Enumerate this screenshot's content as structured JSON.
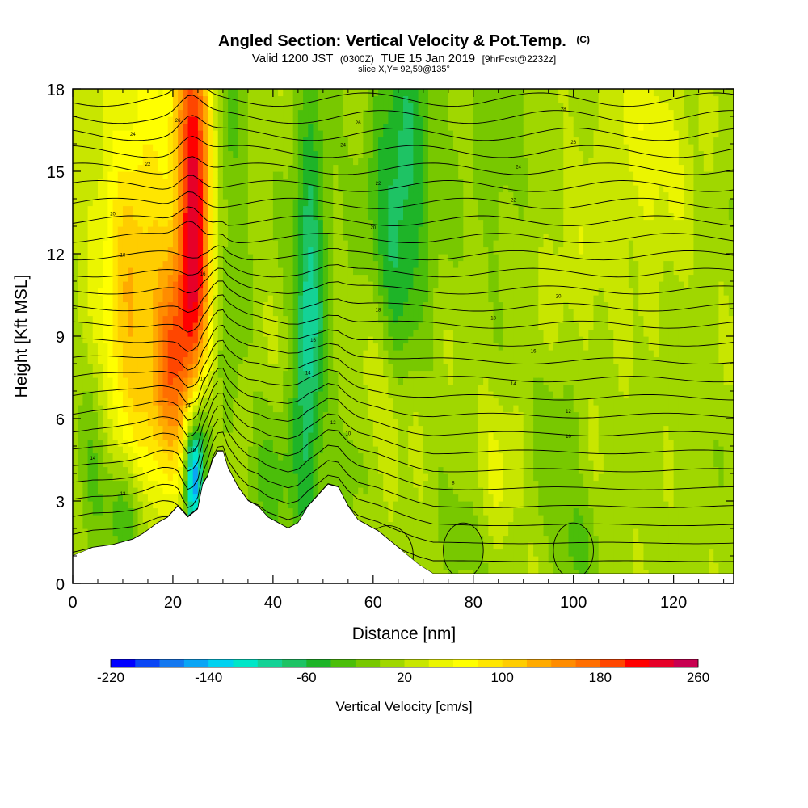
{
  "title": {
    "main": "Angled Section: Vertical Velocity & Pot.Temp.",
    "main_suffix": "(C)",
    "line2_a": "Valid 1200 JST",
    "line2_b": "(0300Z)",
    "line2_c": "TUE 15 Jan 2019",
    "line2_d": "[9hrFcst@2232z]",
    "line3": "slice X,Y= 92,59@135°"
  },
  "chart_data": {
    "type": "heatmap",
    "title": "Angled Section: Vertical Velocity & Pot.Temp.",
    "xlabel": "Distance [nm]",
    "ylabel": "Height [Kft MSL]",
    "xlim": [
      0,
      132
    ],
    "ylim": [
      0,
      18
    ],
    "x_ticks": [
      0,
      20,
      40,
      60,
      80,
      100,
      120
    ],
    "y_ticks": [
      0,
      3,
      6,
      9,
      12,
      15,
      18
    ],
    "grid": false,
    "colorbar": {
      "title": "Vertical Velocity [cm/s]",
      "min": -220,
      "max": 260,
      "step": 20,
      "tick_labels": [
        -220,
        -140,
        -60,
        20,
        100,
        180,
        260
      ],
      "colors": [
        "#0000ff",
        "#0a46f5",
        "#1478f0",
        "#0aa5f5",
        "#00d2f0",
        "#00e6c8",
        "#14d296",
        "#1ec364",
        "#1eb428",
        "#4bbe0a",
        "#78c800",
        "#a0d700",
        "#c8e600",
        "#ebf500",
        "#ffff00",
        "#ffe600",
        "#ffcd00",
        "#ffaa00",
        "#ff8c00",
        "#ff6e00",
        "#ff4600",
        "#ff0000",
        "#e60028",
        "#c80050",
        "#a00078",
        "#82009b",
        "#6e00aa",
        "#5a00b4"
      ]
    },
    "terrain": [
      [
        0,
        1.0
      ],
      [
        4,
        1.3
      ],
      [
        8,
        1.4
      ],
      [
        12,
        1.6
      ],
      [
        14,
        1.8
      ],
      [
        17,
        2.2
      ],
      [
        19,
        2.4
      ],
      [
        21,
        2.8
      ],
      [
        23,
        2.4
      ],
      [
        25,
        2.7
      ],
      [
        26,
        3.6
      ],
      [
        27,
        3.9
      ],
      [
        28,
        4.5
      ],
      [
        29,
        4.8
      ],
      [
        30,
        4.8
      ],
      [
        31,
        4.2
      ],
      [
        33,
        3.5
      ],
      [
        35,
        3.0
      ],
      [
        37,
        2.8
      ],
      [
        39,
        2.4
      ],
      [
        41,
        2.2
      ],
      [
        43,
        2.0
      ],
      [
        45,
        2.2
      ],
      [
        47,
        2.8
      ],
      [
        49,
        3.2
      ],
      [
        51,
        3.6
      ],
      [
        53,
        3.5
      ],
      [
        55,
        2.8
      ],
      [
        57,
        2.3
      ],
      [
        59,
        2.1
      ],
      [
        61,
        1.9
      ],
      [
        63,
        1.6
      ],
      [
        65,
        1.3
      ],
      [
        67,
        1.0
      ],
      [
        69,
        0.7
      ],
      [
        72,
        0.35
      ],
      [
        132,
        0.35
      ]
    ],
    "velocity_features": [
      {
        "x": 24.5,
        "z": 15.5,
        "sx": 2.6,
        "sz": 4.5,
        "v": 180
      },
      {
        "x": 24.5,
        "z": 10.0,
        "sx": 3.0,
        "sz": 3.5,
        "v": 95
      },
      {
        "x": 19.0,
        "z": 7.5,
        "sx": 3.0,
        "sz": 3.0,
        "v": 120
      },
      {
        "x": 11.0,
        "z": 8.5,
        "sx": 3.0,
        "sz": 3.5,
        "v": 70
      },
      {
        "x": 15.0,
        "z": 15.0,
        "sx": 5.0,
        "sz": 6.0,
        "v": 60
      },
      {
        "x": 6.0,
        "z": 12.5,
        "sx": 4.0,
        "sz": 3.0,
        "v": 35
      },
      {
        "x": 24.0,
        "z": 3.8,
        "sx": 1.2,
        "sz": 1.5,
        "v": -165
      },
      {
        "x": 26.0,
        "z": 5.5,
        "sx": 1.5,
        "sz": 2.0,
        "v": -75
      },
      {
        "x": 30.0,
        "z": 14.0,
        "sx": 3.0,
        "sz": 6.0,
        "v": -45
      },
      {
        "x": 47.0,
        "z": 8.0,
        "sx": 2.0,
        "sz": 5.0,
        "v": -80
      },
      {
        "x": 48.0,
        "z": 13.0,
        "sx": 3.0,
        "sz": 4.0,
        "v": -40
      },
      {
        "x": 40.0,
        "z": 3.5,
        "sx": 4.0,
        "sz": 2.0,
        "v": -35
      },
      {
        "x": 54.0,
        "z": 4.0,
        "sx": 3.0,
        "sz": 2.0,
        "v": -25
      },
      {
        "x": 66.0,
        "z": 15.5,
        "sx": 5.0,
        "sz": 4.0,
        "v": -65
      },
      {
        "x": 65.0,
        "z": 11.5,
        "sx": 3.0,
        "sz": 3.0,
        "v": -35
      },
      {
        "x": 85.0,
        "z": 16.0,
        "sx": 4.0,
        "sz": 3.0,
        "v": -30
      },
      {
        "x": 115.0,
        "z": 16.0,
        "sx": 6.0,
        "sz": 3.0,
        "v": 40
      },
      {
        "x": 10.0,
        "z": 2.5,
        "sx": 3.0,
        "sz": 1.5,
        "v": -60
      },
      {
        "x": 4.0,
        "z": 5.0,
        "sx": 2.0,
        "sz": 3.0,
        "v": -25
      },
      {
        "x": 78.0,
        "z": 1.5,
        "sx": 3.0,
        "sz": 1.5,
        "v": -30
      },
      {
        "x": 100.0,
        "z": 1.5,
        "sx": 3.0,
        "sz": 1.5,
        "v": -35
      },
      {
        "x": 96.0,
        "z": 6.0,
        "sx": 4.0,
        "sz": 2.5,
        "v": -25
      },
      {
        "x": 62.0,
        "z": 6.5,
        "sx": 4.0,
        "sz": 2.0,
        "v": 25
      },
      {
        "x": 85.0,
        "z": 4.0,
        "sx": 4.0,
        "sz": 2.0,
        "v": 25
      },
      {
        "x": 100.0,
        "z": 11.0,
        "sx": 6.0,
        "sz": 3.0,
        "v": 20
      }
    ],
    "contour_labels": [
      {
        "text": "26",
        "x": 21,
        "z": 16.8
      },
      {
        "text": "24",
        "x": 12,
        "z": 16.3
      },
      {
        "text": "22",
        "x": 15,
        "z": 15.2
      },
      {
        "text": "20",
        "x": 8,
        "z": 13.4
      },
      {
        "text": "18",
        "x": 10,
        "z": 11.9
      },
      {
        "text": "16",
        "x": 26,
        "z": 11.2
      },
      {
        "text": "12",
        "x": 26,
        "z": 7.4
      },
      {
        "text": "14",
        "x": 23,
        "z": 6.4
      },
      {
        "text": "10",
        "x": 24,
        "z": 4.8
      },
      {
        "text": "14",
        "x": 4,
        "z": 4.5
      },
      {
        "text": "12",
        "x": 10,
        "z": 3.2
      },
      {
        "text": "26",
        "x": 57,
        "z": 16.7
      },
      {
        "text": "24",
        "x": 54,
        "z": 15.9
      },
      {
        "text": "22",
        "x": 61,
        "z": 14.5
      },
      {
        "text": "20",
        "x": 60,
        "z": 12.9
      },
      {
        "text": "18",
        "x": 61,
        "z": 9.9
      },
      {
        "text": "16",
        "x": 48,
        "z": 8.8
      },
      {
        "text": "14",
        "x": 47,
        "z": 7.6
      },
      {
        "text": "12",
        "x": 52,
        "z": 5.8
      },
      {
        "text": "10",
        "x": 55,
        "z": 5.4
      },
      {
        "text": "8",
        "x": 76,
        "z": 3.6
      },
      {
        "text": "28",
        "x": 98,
        "z": 17.2
      },
      {
        "text": "26",
        "x": 100,
        "z": 16.0
      },
      {
        "text": "24",
        "x": 89,
        "z": 15.1
      },
      {
        "text": "22",
        "x": 88,
        "z": 13.9
      },
      {
        "text": "20",
        "x": 97,
        "z": 10.4
      },
      {
        "text": "18",
        "x": 84,
        "z": 9.6
      },
      {
        "text": "16",
        "x": 92,
        "z": 8.4
      },
      {
        "text": "14",
        "x": 88,
        "z": 7.2
      },
      {
        "text": "12",
        "x": 99,
        "z": 6.2
      },
      {
        "text": "10",
        "x": 99,
        "z": 5.3
      }
    ]
  }
}
